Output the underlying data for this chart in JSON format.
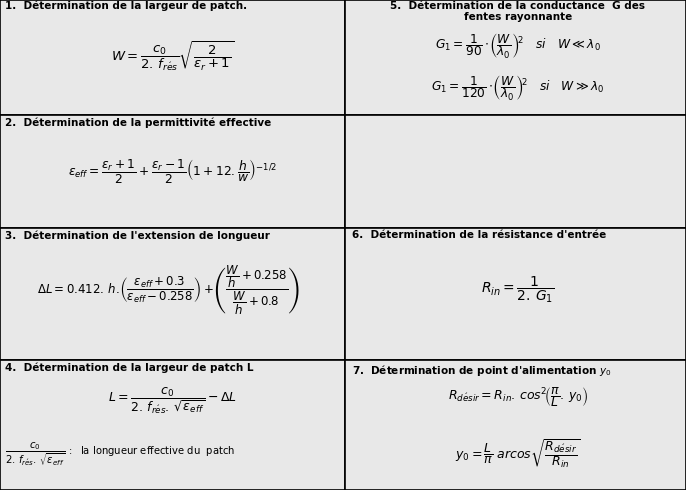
{
  "bg_color": "#c8c8c8",
  "cell_bg": "#e8e8e8",
  "border_color": "#000000",
  "fig_width": 6.86,
  "fig_height": 4.9,
  "dpi": 100,
  "row_tops": [
    1.0,
    0.765,
    0.535,
    0.265,
    0.0
  ],
  "col_splits": [
    0.0,
    0.503,
    1.0
  ],
  "header_fontsize": 7.5,
  "formula_fontsize": 8.5
}
